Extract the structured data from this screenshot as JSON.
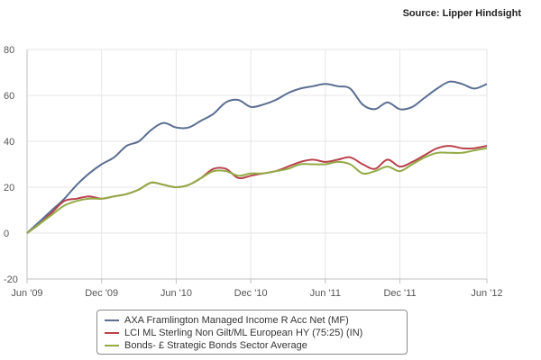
{
  "source": "Source: Lipper Hindsight",
  "chart_data": {
    "type": "line",
    "x_labels": [
      "Jun '09",
      "Dec '09",
      "Jun '10",
      "Dec '10",
      "Jun '11",
      "Dec '11",
      "Jun '12"
    ],
    "ylim": [
      -20,
      80
    ],
    "y_ticks": [
      -20,
      0,
      20,
      40,
      60,
      80
    ],
    "grid": true,
    "legend_position": "bottom",
    "series": [
      {
        "name": "AXA Framlington Managed Income R Acc Net (MF)",
        "color": "#5a6e92",
        "values": [
          [
            0,
            0
          ],
          [
            1,
            5
          ],
          [
            2,
            10
          ],
          [
            3,
            15
          ],
          [
            4,
            21
          ],
          [
            5,
            26
          ],
          [
            6,
            30
          ],
          [
            7,
            33
          ],
          [
            8,
            38
          ],
          [
            9,
            40
          ],
          [
            10,
            45
          ],
          [
            11,
            48
          ],
          [
            12,
            46
          ],
          [
            13,
            46
          ],
          [
            14,
            49
          ],
          [
            15,
            52
          ],
          [
            16,
            57
          ],
          [
            17,
            58
          ],
          [
            18,
            55
          ],
          [
            19,
            56
          ],
          [
            20,
            58
          ],
          [
            21,
            61
          ],
          [
            22,
            63
          ],
          [
            23,
            64
          ],
          [
            24,
            65
          ],
          [
            25,
            64
          ],
          [
            26,
            63
          ],
          [
            27,
            56
          ],
          [
            28,
            54
          ],
          [
            29,
            57
          ],
          [
            30,
            54
          ],
          [
            31,
            55
          ],
          [
            32,
            59
          ],
          [
            33,
            63
          ],
          [
            34,
            66
          ],
          [
            35,
            65
          ],
          [
            36,
            63
          ],
          [
            37,
            65
          ]
        ]
      },
      {
        "name": "LCI ML Sterling Non Gilt/ML European HY (75:25) (IN)",
        "color": "#b8424c",
        "values": [
          [
            0,
            0
          ],
          [
            1,
            4
          ],
          [
            2,
            9
          ],
          [
            3,
            14
          ],
          [
            4,
            15
          ],
          [
            5,
            16
          ],
          [
            6,
            15
          ],
          [
            7,
            16
          ],
          [
            8,
            17
          ],
          [
            9,
            19
          ],
          [
            10,
            22
          ],
          [
            11,
            21
          ],
          [
            12,
            20
          ],
          [
            13,
            21
          ],
          [
            14,
            24
          ],
          [
            15,
            28
          ],
          [
            16,
            28
          ],
          [
            17,
            24
          ],
          [
            18,
            25
          ],
          [
            19,
            26
          ],
          [
            20,
            27
          ],
          [
            21,
            29
          ],
          [
            22,
            31
          ],
          [
            23,
            32
          ],
          [
            24,
            31
          ],
          [
            25,
            32
          ],
          [
            26,
            33
          ],
          [
            27,
            30
          ],
          [
            28,
            28
          ],
          [
            29,
            32
          ],
          [
            30,
            29
          ],
          [
            31,
            31
          ],
          [
            32,
            34
          ],
          [
            33,
            37
          ],
          [
            34,
            38
          ],
          [
            35,
            37
          ],
          [
            36,
            37
          ],
          [
            37,
            38
          ]
        ]
      },
      {
        "name": "Bonds- £ Strategic Bonds Sector Average",
        "color": "#92aa45",
        "values": [
          [
            0,
            0
          ],
          [
            1,
            4
          ],
          [
            2,
            8
          ],
          [
            3,
            12
          ],
          [
            4,
            14
          ],
          [
            5,
            15
          ],
          [
            6,
            15
          ],
          [
            7,
            16
          ],
          [
            8,
            17
          ],
          [
            9,
            19
          ],
          [
            10,
            22
          ],
          [
            11,
            21
          ],
          [
            12,
            20
          ],
          [
            13,
            21
          ],
          [
            14,
            24
          ],
          [
            15,
            27
          ],
          [
            16,
            27
          ],
          [
            17,
            25
          ],
          [
            18,
            26
          ],
          [
            19,
            26
          ],
          [
            20,
            27
          ],
          [
            21,
            28
          ],
          [
            22,
            30
          ],
          [
            23,
            30
          ],
          [
            24,
            30
          ],
          [
            25,
            31
          ],
          [
            26,
            30
          ],
          [
            27,
            26
          ],
          [
            28,
            27
          ],
          [
            29,
            29
          ],
          [
            30,
            27
          ],
          [
            31,
            30
          ],
          [
            32,
            33
          ],
          [
            33,
            35
          ],
          [
            34,
            35
          ],
          [
            35,
            35
          ],
          [
            36,
            36
          ],
          [
            37,
            37
          ]
        ]
      }
    ]
  }
}
